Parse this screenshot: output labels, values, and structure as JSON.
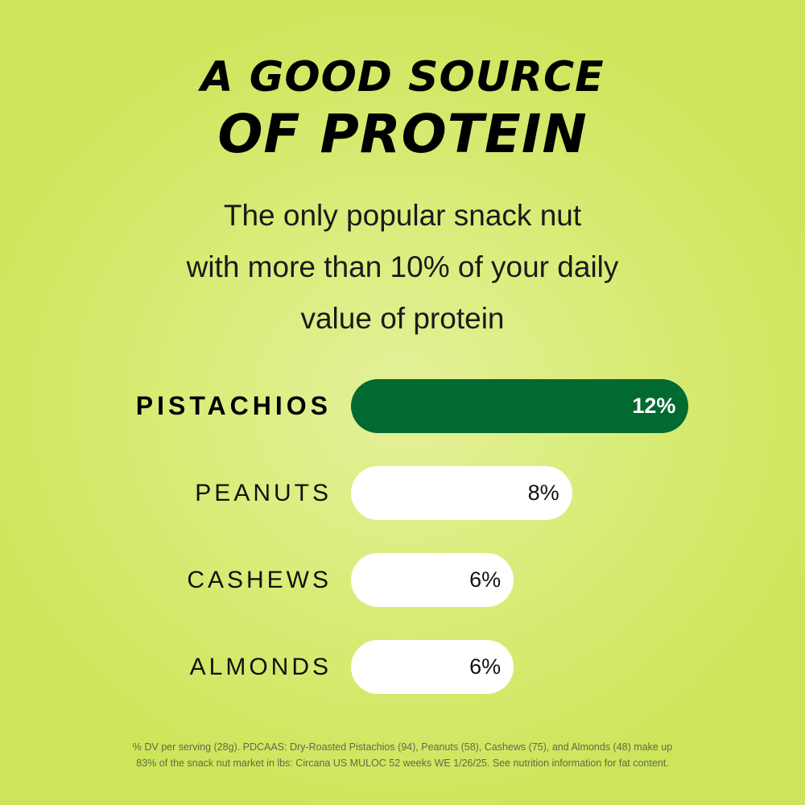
{
  "title_line1": "A GOOD SOURCE",
  "title_line2": "OF PROTEIN",
  "subtitle_lines": [
    "The only popular snack nut",
    "with more than 10% of your daily",
    "value of protein"
  ],
  "colors": {
    "highlight": "#006a30",
    "bar": "#ffffff",
    "background": "#d9ec78"
  },
  "chart_data": {
    "type": "bar",
    "orientation": "horizontal",
    "categories": [
      "PISTACHIOS",
      "PEANUTS",
      "CASHEWS",
      "ALMONDS"
    ],
    "values": [
      12,
      8,
      6,
      6
    ],
    "value_labels": [
      "12%",
      "8%",
      "6%",
      "6%"
    ],
    "highlighted": "PISTACHIOS",
    "unit": "% DV",
    "grid": false
  },
  "footnote_lines": [
    "% DV per serving (28g). PDCAAS: Dry-Roasted Pistachios (94), Peanuts (58), Cashews (75), and Almonds (48) make up",
    "83% of the snack nut market in lbs: Circana US MULOC 52 weeks WE 1/26/25. See nutrition information for fat content."
  ]
}
